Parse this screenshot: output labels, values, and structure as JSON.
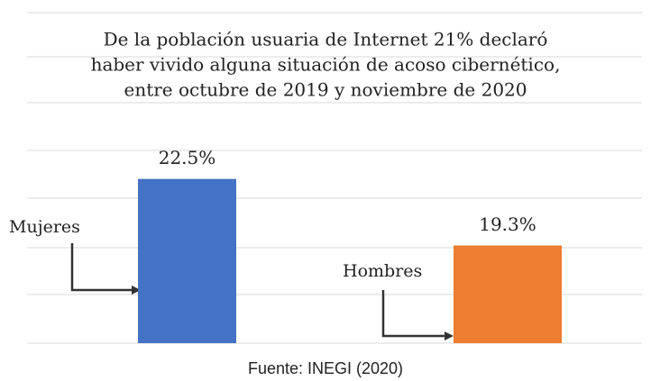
{
  "chart_data": {
    "type": "bar",
    "title": [
      "De la población usuaria de Internet 21% declaró",
      "haber vivido alguna situación de acoso cibernético,",
      "entre octubre de 2019 y noviembre de 2020"
    ],
    "categories": [
      "Mujeres",
      "Hombres"
    ],
    "values": [
      22.5,
      19.3
    ],
    "value_labels": [
      "22.5%",
      "19.3%"
    ],
    "colors": [
      "#4472c4",
      "#ed7d31"
    ],
    "ylim": [
      14.6,
      30.5
    ],
    "source": "Fuente: INEGI (2020)"
  }
}
